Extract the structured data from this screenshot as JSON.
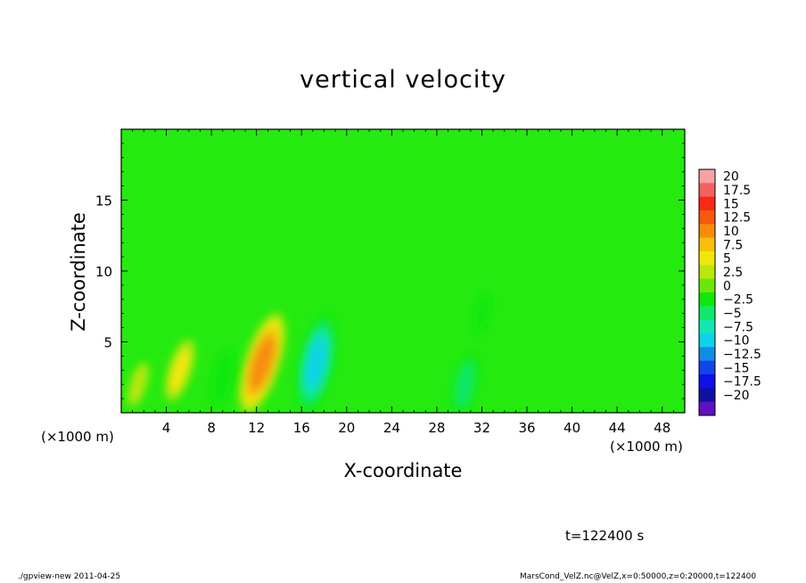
{
  "chart_data": {
    "type": "heatmap",
    "title": "vertical velocity",
    "xlabel": "X-coordinate",
    "ylabel": "Z-coordinate",
    "x_unit_label": "(×1000 m)",
    "x_range": [
      0,
      50
    ],
    "y_range": [
      0,
      20
    ],
    "x_ticks": [
      4,
      8,
      12,
      16,
      20,
      24,
      28,
      32,
      36,
      40,
      44,
      48
    ],
    "y_ticks": [
      5,
      10,
      15
    ],
    "colorbar": {
      "levels": [
        "20",
        "17.5",
        "15",
        "12.5",
        "10",
        "7.5",
        "5",
        "2.5",
        "0",
        "−2.5",
        "−5",
        "−7.5",
        "−10",
        "−12.5",
        "−15",
        "−17.5",
        "−20"
      ],
      "colors": [
        "#f7a3a3",
        "#f76060",
        "#f72a14",
        "#f55a0a",
        "#f78c0a",
        "#f7c00a",
        "#f0e80a",
        "#b9e80a",
        "#6be80a",
        "#10e80a",
        "#10e86a",
        "#10e8b4",
        "#10d2e8",
        "#108ce8",
        "#1046e8",
        "#1010e8",
        "#1010a0",
        "#6010c0"
      ]
    },
    "features": [
      {
        "x": 5.2,
        "z": 3.0,
        "w": 5.5,
        "desc": "updraft"
      },
      {
        "x": 12.5,
        "z": 3.5,
        "w": 12.0,
        "desc": "updraft"
      },
      {
        "x": 17.3,
        "z": 3.5,
        "w": -11.0,
        "desc": "downdraft"
      },
      {
        "x": 9.0,
        "z": 2.5,
        "w": -4.5,
        "desc": "downdraft"
      },
      {
        "x": 30.5,
        "z": 2.0,
        "w": -5.5,
        "desc": "downdraft"
      },
      {
        "x": 32.0,
        "z": 7.0,
        "w": -2.5,
        "desc": "weak downdraft"
      },
      {
        "x": 1.5,
        "z": 2.0,
        "w": 3.0,
        "desc": "weak updraft"
      }
    ],
    "background_w": 0.3
  },
  "annotations": {
    "time": "t=122400 s",
    "footer_left": "./gpview-new   2011-04-25",
    "footer_right": "MarsCond_VelZ.nc@VelZ,x=0:50000,z=0:20000,t=122400"
  },
  "colors": {
    "background_field": "#24ea10",
    "frame": "#000000"
  }
}
